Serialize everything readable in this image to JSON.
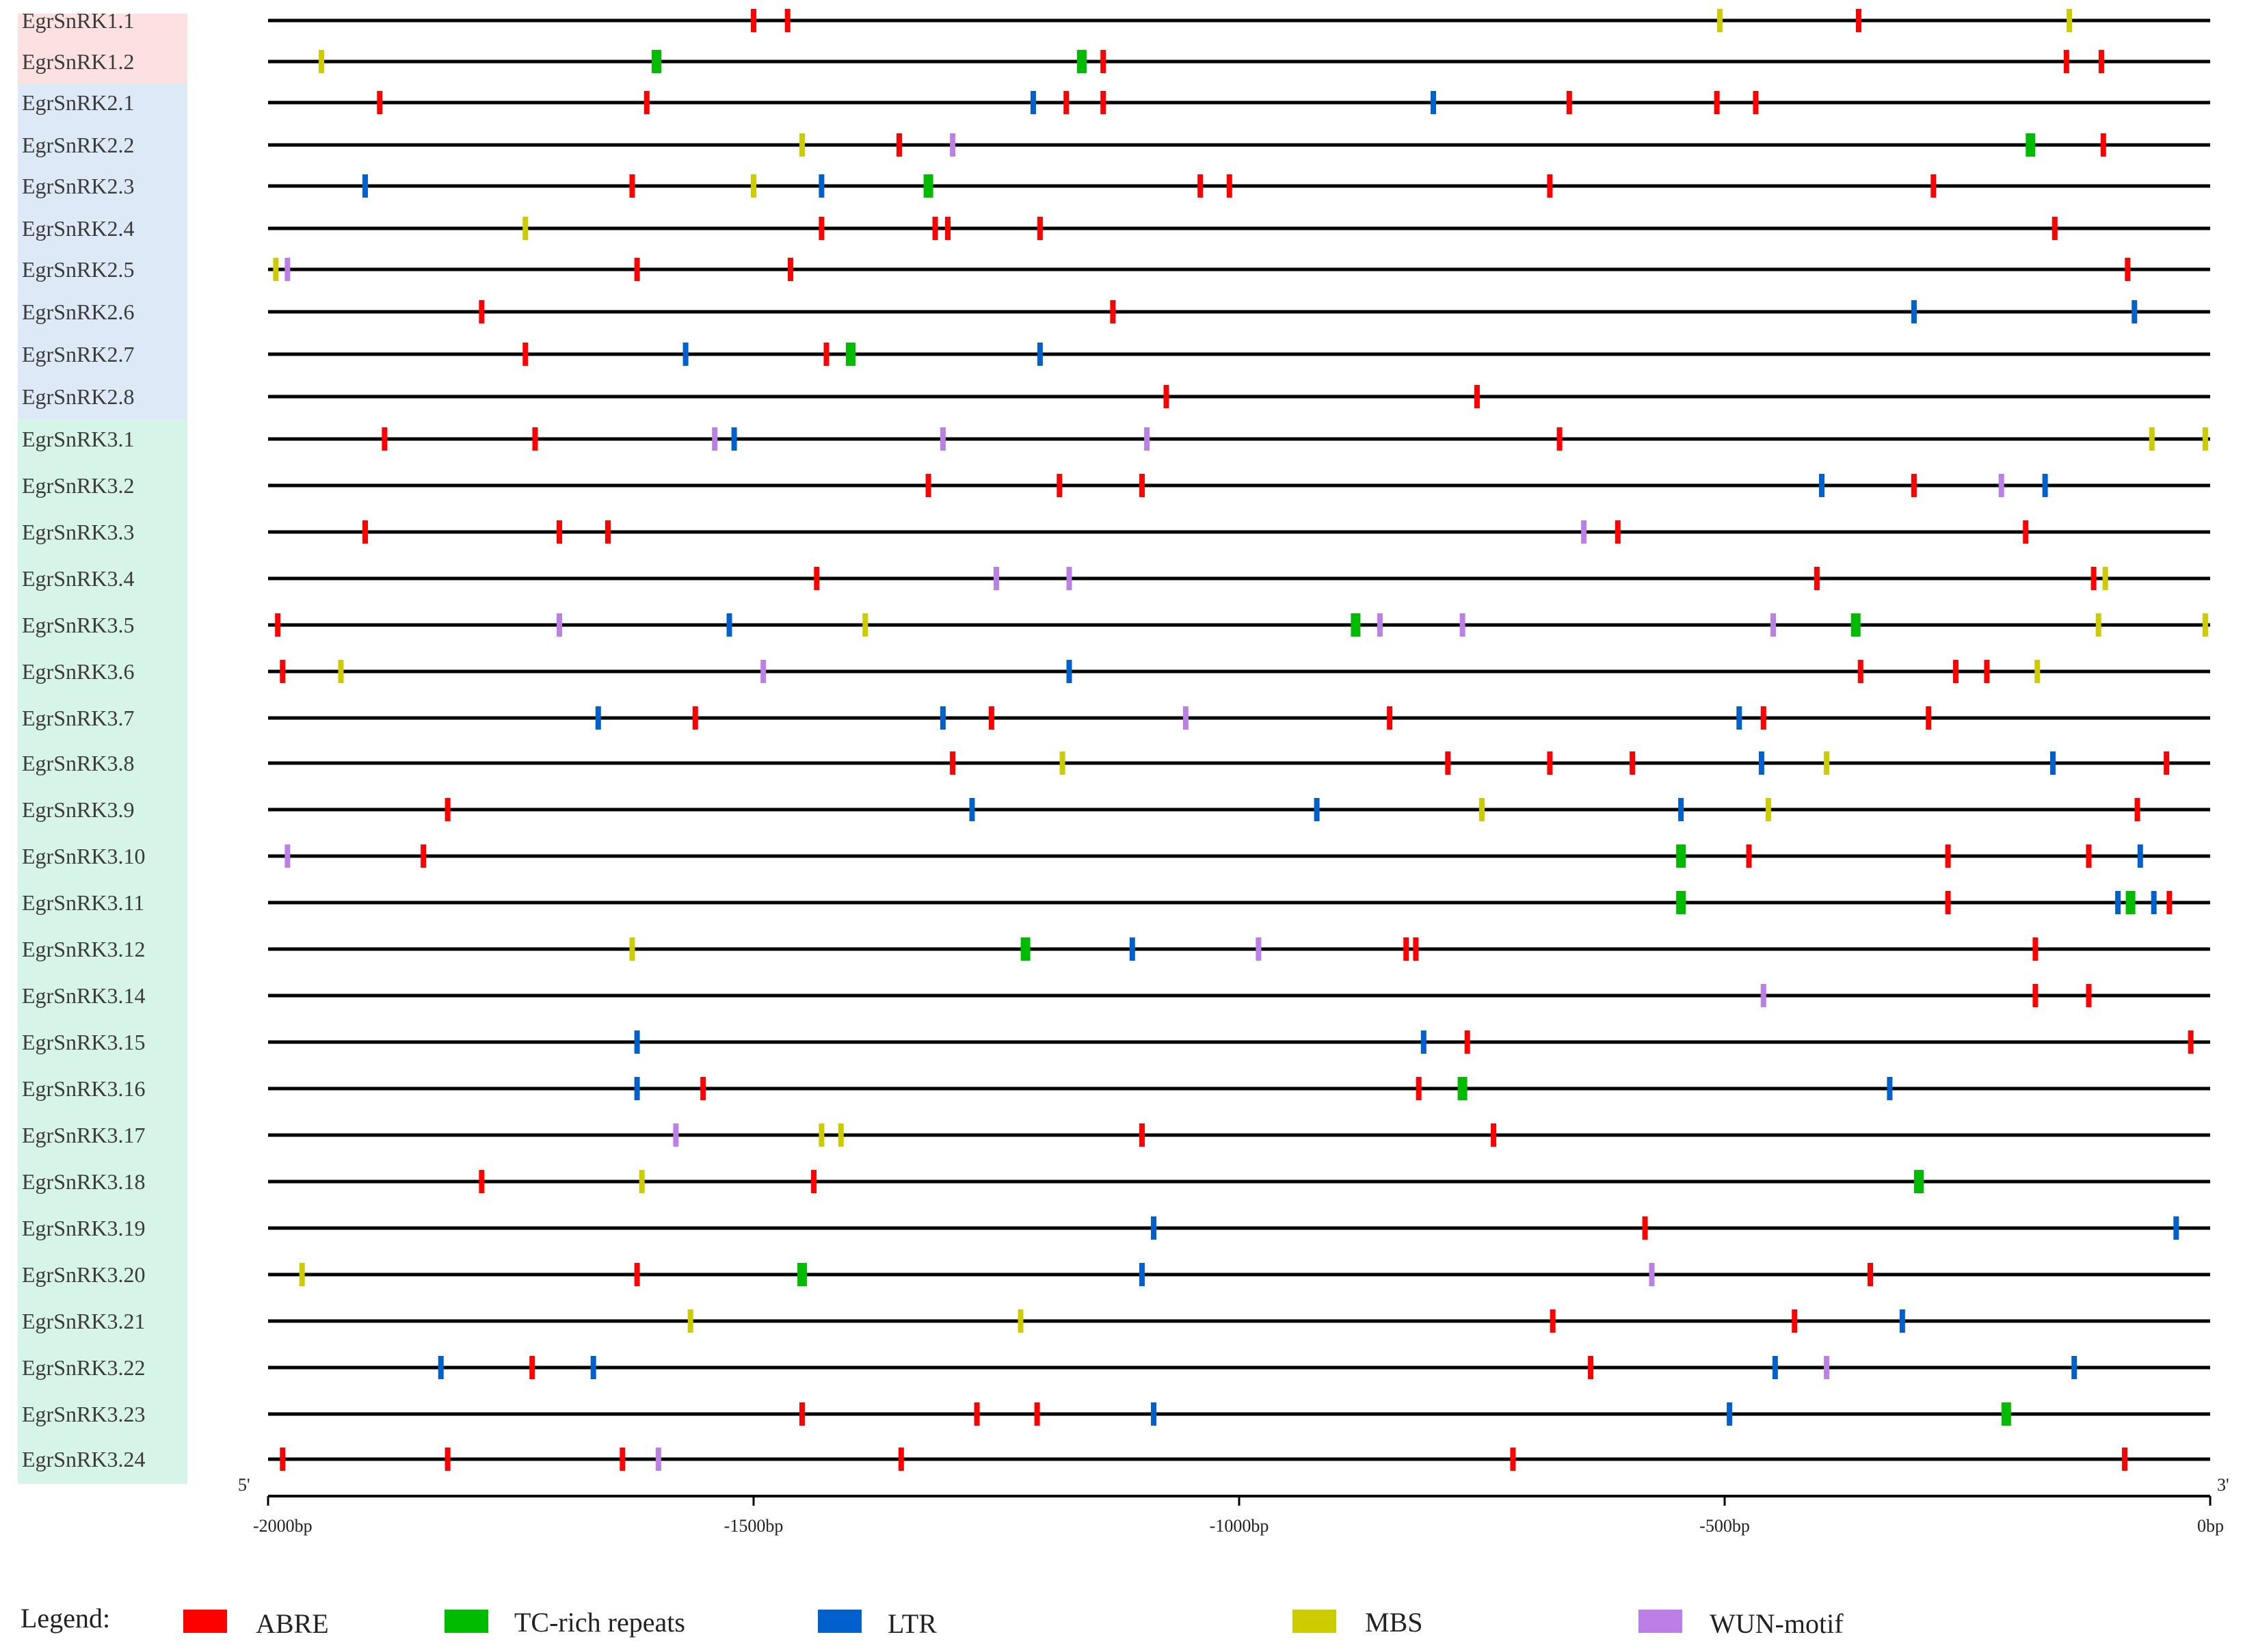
{
  "colors": {
    "ABRE": "#ff0000",
    "TC-rich repeats": "#00bb00",
    "LTR": "#0060cc",
    "MBS": "#cccc00",
    "WUN-motif": "#bb7fe6",
    "group1_bg": "#fde0e0",
    "group2_bg": "#dde9f6",
    "group3_bg": "#d7f4e8",
    "line": "#000000"
  },
  "axis": {
    "range": [
      -2000,
      0
    ],
    "ticks": [
      -2000,
      -1500,
      -1000,
      -500,
      0
    ],
    "tick_labels": [
      "-2000bp",
      "-1500bp",
      "-1000bp",
      "-500bp",
      "0bp"
    ],
    "left_end": "5'",
    "right_end": "3'"
  },
  "legend": {
    "title": "Legend:",
    "items": [
      {
        "name": "ABRE",
        "color": "#ff0000"
      },
      {
        "name": "TC-rich repeats",
        "color": "#00bb00"
      },
      {
        "name": "LTR",
        "color": "#0060cc"
      },
      {
        "name": "MBS",
        "color": "#cccc00"
      },
      {
        "name": "WUN-motif",
        "color": "#bb7fe6"
      }
    ]
  },
  "genes": [
    {
      "name": "EgrSnRK1.1",
      "group": 1,
      "elements": [
        [
          "ABRE",
          -1500
        ],
        [
          "ABRE",
          -1465
        ],
        [
          "MBS",
          -505
        ],
        [
          "ABRE",
          -362
        ],
        [
          "MBS",
          -145
        ]
      ]
    },
    {
      "name": "EgrSnRK1.2",
      "group": 1,
      "elements": [
        [
          "MBS",
          -1945
        ],
        [
          "TC-rich repeats",
          -1600
        ],
        [
          "TC-rich repeats",
          -1162
        ],
        [
          "ABRE",
          -1140
        ],
        [
          "ABRE",
          -148
        ],
        [
          "ABRE",
          -112
        ]
      ]
    },
    {
      "name": "EgrSnRK2.1",
      "group": 2,
      "elements": [
        [
          "ABRE",
          -1885
        ],
        [
          "ABRE",
          -1610
        ],
        [
          "LTR",
          -1212
        ],
        [
          "ABRE",
          -1178
        ],
        [
          "ABRE",
          -1140
        ],
        [
          "LTR",
          -800
        ],
        [
          "ABRE",
          -660
        ],
        [
          "ABRE",
          -508
        ],
        [
          "ABRE",
          -468
        ]
      ]
    },
    {
      "name": "EgrSnRK2.2",
      "group": 2,
      "elements": [
        [
          "MBS",
          -1450
        ],
        [
          "ABRE",
          -1350
        ],
        [
          "WUN-motif",
          -1295
        ],
        [
          "TC-rich repeats",
          -185
        ],
        [
          "ABRE",
          -110
        ]
      ]
    },
    {
      "name": "EgrSnRK2.3",
      "group": 2,
      "elements": [
        [
          "LTR",
          -1900
        ],
        [
          "ABRE",
          -1625
        ],
        [
          "MBS",
          -1500
        ],
        [
          "LTR",
          -1430
        ],
        [
          "TC-rich repeats",
          -1320
        ],
        [
          "ABRE",
          -1040
        ],
        [
          "ABRE",
          -1010
        ],
        [
          "ABRE",
          -680
        ],
        [
          "ABRE",
          -285
        ]
      ]
    },
    {
      "name": "EgrSnRK2.4",
      "group": 2,
      "elements": [
        [
          "MBS",
          -1735
        ],
        [
          "ABRE",
          -1430
        ],
        [
          "ABRE",
          -1313
        ],
        [
          "ABRE",
          -1300
        ],
        [
          "ABRE",
          -1205
        ],
        [
          "ABRE",
          -160
        ]
      ]
    },
    {
      "name": "EgrSnRK2.5",
      "group": 2,
      "elements": [
        [
          "MBS",
          -1992
        ],
        [
          "WUN-motif",
          -1980
        ],
        [
          "ABRE",
          -1620
        ],
        [
          "ABRE",
          -1462
        ],
        [
          "ABRE",
          -85
        ]
      ]
    },
    {
      "name": "EgrSnRK2.6",
      "group": 2,
      "elements": [
        [
          "ABRE",
          -1780
        ],
        [
          "ABRE",
          -1130
        ],
        [
          "LTR",
          -305
        ],
        [
          "LTR",
          -78
        ]
      ]
    },
    {
      "name": "EgrSnRK2.7",
      "group": 2,
      "elements": [
        [
          "ABRE",
          -1735
        ],
        [
          "LTR",
          -1570
        ],
        [
          "ABRE",
          -1425
        ],
        [
          "TC-rich repeats",
          -1400
        ],
        [
          "LTR",
          -1205
        ]
      ]
    },
    {
      "name": "EgrSnRK2.8",
      "group": 2,
      "elements": [
        [
          "ABRE",
          -1075
        ],
        [
          "ABRE",
          -755
        ]
      ]
    },
    {
      "name": "EgrSnRK3.1",
      "group": 3,
      "elements": [
        [
          "ABRE",
          -1880
        ],
        [
          "ABRE",
          -1725
        ],
        [
          "WUN-motif",
          -1540
        ],
        [
          "LTR",
          -1520
        ],
        [
          "WUN-motif",
          -1305
        ],
        [
          "WUN-motif",
          -1095
        ],
        [
          "ABRE",
          -670
        ],
        [
          "MBS",
          -60
        ],
        [
          "MBS",
          -5
        ]
      ]
    },
    {
      "name": "EgrSnRK3.2",
      "group": 3,
      "elements": [
        [
          "ABRE",
          -1320
        ],
        [
          "ABRE",
          -1185
        ],
        [
          "ABRE",
          -1100
        ],
        [
          "LTR",
          -400
        ],
        [
          "ABRE",
          -305
        ],
        [
          "WUN-motif",
          -215
        ],
        [
          "LTR",
          -170
        ]
      ]
    },
    {
      "name": "EgrSnRK3.3",
      "group": 3,
      "elements": [
        [
          "ABRE",
          -1900
        ],
        [
          "ABRE",
          -1700
        ],
        [
          "ABRE",
          -1650
        ],
        [
          "WUN-motif",
          -645
        ],
        [
          "ABRE",
          -610
        ],
        [
          "ABRE",
          -190
        ]
      ]
    },
    {
      "name": "EgrSnRK3.4",
      "group": 3,
      "elements": [
        [
          "ABRE",
          -1435
        ],
        [
          "WUN-motif",
          -1250
        ],
        [
          "WUN-motif",
          -1175
        ],
        [
          "ABRE",
          -405
        ],
        [
          "ABRE",
          -120
        ],
        [
          "MBS",
          -108
        ]
      ]
    },
    {
      "name": "EgrSnRK3.5",
      "group": 3,
      "elements": [
        [
          "ABRE",
          -1990
        ],
        [
          "WUN-motif",
          -1700
        ],
        [
          "LTR",
          -1525
        ],
        [
          "MBS",
          -1385
        ],
        [
          "TC-rich repeats",
          -880
        ],
        [
          "WUN-motif",
          -855
        ],
        [
          "WUN-motif",
          -770
        ],
        [
          "WUN-motif",
          -450
        ],
        [
          "TC-rich repeats",
          -365
        ],
        [
          "MBS",
          -115
        ],
        [
          "MBS",
          -5
        ]
      ]
    },
    {
      "name": "EgrSnRK3.6",
      "group": 3,
      "elements": [
        [
          "ABRE",
          -1985
        ],
        [
          "MBS",
          -1925
        ],
        [
          "WUN-motif",
          -1490
        ],
        [
          "LTR",
          -1175
        ],
        [
          "ABRE",
          -360
        ],
        [
          "ABRE",
          -262
        ],
        [
          "ABRE",
          -230
        ],
        [
          "MBS",
          -178
        ]
      ]
    },
    {
      "name": "EgrSnRK3.7",
      "group": 3,
      "elements": [
        [
          "LTR",
          -1660
        ],
        [
          "ABRE",
          -1560
        ],
        [
          "LTR",
          -1305
        ],
        [
          "ABRE",
          -1255
        ],
        [
          "WUN-motif",
          -1055
        ],
        [
          "ABRE",
          -845
        ],
        [
          "LTR",
          -485
        ],
        [
          "ABRE",
          -460
        ],
        [
          "ABRE",
          -290
        ]
      ]
    },
    {
      "name": "EgrSnRK3.8",
      "group": 3,
      "elements": [
        [
          "ABRE",
          -1295
        ],
        [
          "MBS",
          -1182
        ],
        [
          "ABRE",
          -785
        ],
        [
          "ABRE",
          -680
        ],
        [
          "ABRE",
          -595
        ],
        [
          "LTR",
          -462
        ],
        [
          "MBS",
          -395
        ],
        [
          "LTR",
          -162
        ],
        [
          "ABRE",
          -45
        ]
      ]
    },
    {
      "name": "EgrSnRK3.9",
      "group": 3,
      "elements": [
        [
          "ABRE",
          -1815
        ],
        [
          "LTR",
          -1275
        ],
        [
          "LTR",
          -920
        ],
        [
          "MBS",
          -750
        ],
        [
          "LTR",
          -545
        ],
        [
          "MBS",
          -455
        ],
        [
          "ABRE",
          -75
        ]
      ]
    },
    {
      "name": "EgrSnRK3.10",
      "group": 3,
      "elements": [
        [
          "WUN-motif",
          -1980
        ],
        [
          "ABRE",
          -1840
        ],
        [
          "TC-rich repeats",
          -545
        ],
        [
          "ABRE",
          -475
        ],
        [
          "ABRE",
          -270
        ],
        [
          "ABRE",
          -125
        ],
        [
          "LTR",
          -72
        ]
      ]
    },
    {
      "name": "EgrSnRK3.11",
      "group": 3,
      "elements": [
        [
          "TC-rich repeats",
          -545
        ],
        [
          "ABRE",
          -270
        ],
        [
          "LTR",
          -95
        ],
        [
          "TC-rich repeats",
          -82
        ],
        [
          "LTR",
          -58
        ],
        [
          "ABRE",
          -42
        ]
      ]
    },
    {
      "name": "EgrSnRK3.12",
      "group": 3,
      "elements": [
        [
          "MBS",
          -1625
        ],
        [
          "TC-rich repeats",
          -1220
        ],
        [
          "LTR",
          -1110
        ],
        [
          "WUN-motif",
          -980
        ],
        [
          "ABRE",
          -828
        ],
        [
          "ABRE",
          -818
        ],
        [
          "ABRE",
          -180
        ]
      ]
    },
    {
      "name": "EgrSnRK3.14",
      "group": 3,
      "elements": [
        [
          "WUN-motif",
          -460
        ],
        [
          "ABRE",
          -180
        ],
        [
          "ABRE",
          -125
        ]
      ]
    },
    {
      "name": "EgrSnRK3.15",
      "group": 3,
      "elements": [
        [
          "LTR",
          -1620
        ],
        [
          "LTR",
          -810
        ],
        [
          "ABRE",
          -765
        ],
        [
          "ABRE",
          -20
        ]
      ]
    },
    {
      "name": "EgrSnRK3.16",
      "group": 3,
      "elements": [
        [
          "LTR",
          -1620
        ],
        [
          "ABRE",
          -1552
        ],
        [
          "ABRE",
          -815
        ],
        [
          "TC-rich repeats",
          -770
        ],
        [
          "LTR",
          -330
        ]
      ]
    },
    {
      "name": "EgrSnRK3.17",
      "group": 3,
      "elements": [
        [
          "WUN-motif",
          -1580
        ],
        [
          "MBS",
          -1430
        ],
        [
          "MBS",
          -1410
        ],
        [
          "ABRE",
          -1100
        ],
        [
          "ABRE",
          -738
        ]
      ]
    },
    {
      "name": "EgrSnRK3.18",
      "group": 3,
      "elements": [
        [
          "ABRE",
          -1780
        ],
        [
          "MBS",
          -1615
        ],
        [
          "ABRE",
          -1438
        ],
        [
          "TC-rich repeats",
          -300
        ]
      ]
    },
    {
      "name": "EgrSnRK3.19",
      "group": 3,
      "elements": [
        [
          "LTR",
          -1088
        ],
        [
          "ABRE",
          -582
        ],
        [
          "LTR",
          -35
        ]
      ]
    },
    {
      "name": "EgrSnRK3.20",
      "group": 3,
      "elements": [
        [
          "MBS",
          -1965
        ],
        [
          "ABRE",
          -1620
        ],
        [
          "TC-rich repeats",
          -1450
        ],
        [
          "LTR",
          -1100
        ],
        [
          "WUN-motif",
          -575
        ],
        [
          "ABRE",
          -350
        ]
      ]
    },
    {
      "name": "EgrSnRK3.21",
      "group": 3,
      "elements": [
        [
          "MBS",
          -1565
        ],
        [
          "MBS",
          -1225
        ],
        [
          "ABRE",
          -677
        ],
        [
          "ABRE",
          -428
        ],
        [
          "LTR",
          -317
        ]
      ]
    },
    {
      "name": "EgrSnRK3.22",
      "group": 3,
      "elements": [
        [
          "LTR",
          -1822
        ],
        [
          "ABRE",
          -1728
        ],
        [
          "LTR",
          -1665
        ],
        [
          "ABRE",
          -638
        ],
        [
          "LTR",
          -448
        ],
        [
          "WUN-motif",
          -395
        ],
        [
          "LTR",
          -140
        ]
      ]
    },
    {
      "name": "EgrSnRK3.23",
      "group": 3,
      "elements": [
        [
          "ABRE",
          -1450
        ],
        [
          "ABRE",
          -1270
        ],
        [
          "ABRE",
          -1208
        ],
        [
          "LTR",
          -1088
        ],
        [
          "LTR",
          -495
        ],
        [
          "TC-rich repeats",
          -210
        ]
      ]
    },
    {
      "name": "EgrSnRK3.24",
      "group": 3,
      "elements": [
        [
          "ABRE",
          -1985
        ],
        [
          "ABRE",
          -1815
        ],
        [
          "ABRE",
          -1635
        ],
        [
          "WUN-motif",
          -1598
        ],
        [
          "ABRE",
          -1348
        ],
        [
          "ABRE",
          -718
        ],
        [
          "ABRE",
          -88
        ]
      ]
    }
  ]
}
